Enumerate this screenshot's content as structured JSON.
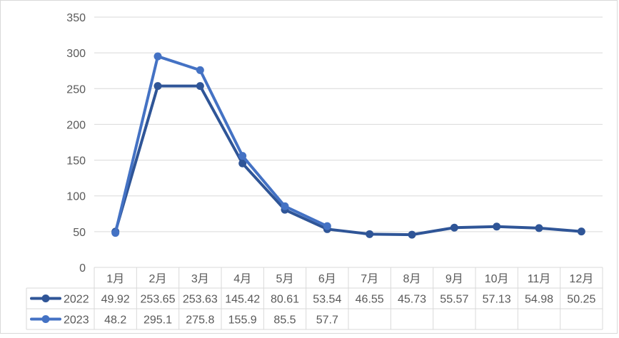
{
  "chart_data": {
    "type": "line",
    "title": "",
    "xlabel": "",
    "ylabel": "",
    "ylim": [
      0,
      350
    ],
    "yticks": [
      "0",
      "50",
      "100",
      "150",
      "200",
      "250",
      "300",
      "350"
    ],
    "categories": [
      "1月",
      "2月",
      "3月",
      "4月",
      "5月",
      "6月",
      "7月",
      "8月",
      "9月",
      "10月",
      "11月",
      "12月"
    ],
    "grid": true,
    "legend": "data-table",
    "series": [
      {
        "name": "2022",
        "color": "#2f5597",
        "values": [
          49.92,
          253.65,
          253.63,
          145.42,
          80.61,
          53.54,
          46.55,
          45.73,
          55.57,
          57.13,
          54.98,
          50.25
        ],
        "labels": [
          "49.92",
          "253.65",
          "253.63",
          "145.42",
          "80.61",
          "53.54",
          "46.55",
          "45.73",
          "55.57",
          "57.13",
          "54.98",
          "50.25"
        ]
      },
      {
        "name": "2023",
        "color": "#4472c4",
        "values": [
          48.2,
          295.1,
          275.8,
          155.9,
          85.5,
          57.7,
          null,
          null,
          null,
          null,
          null,
          null
        ],
        "labels": [
          "48.2",
          "295.1",
          "275.8",
          "155.9",
          "85.5",
          "57.7",
          "",
          "",
          "",
          "",
          "",
          ""
        ]
      }
    ]
  }
}
